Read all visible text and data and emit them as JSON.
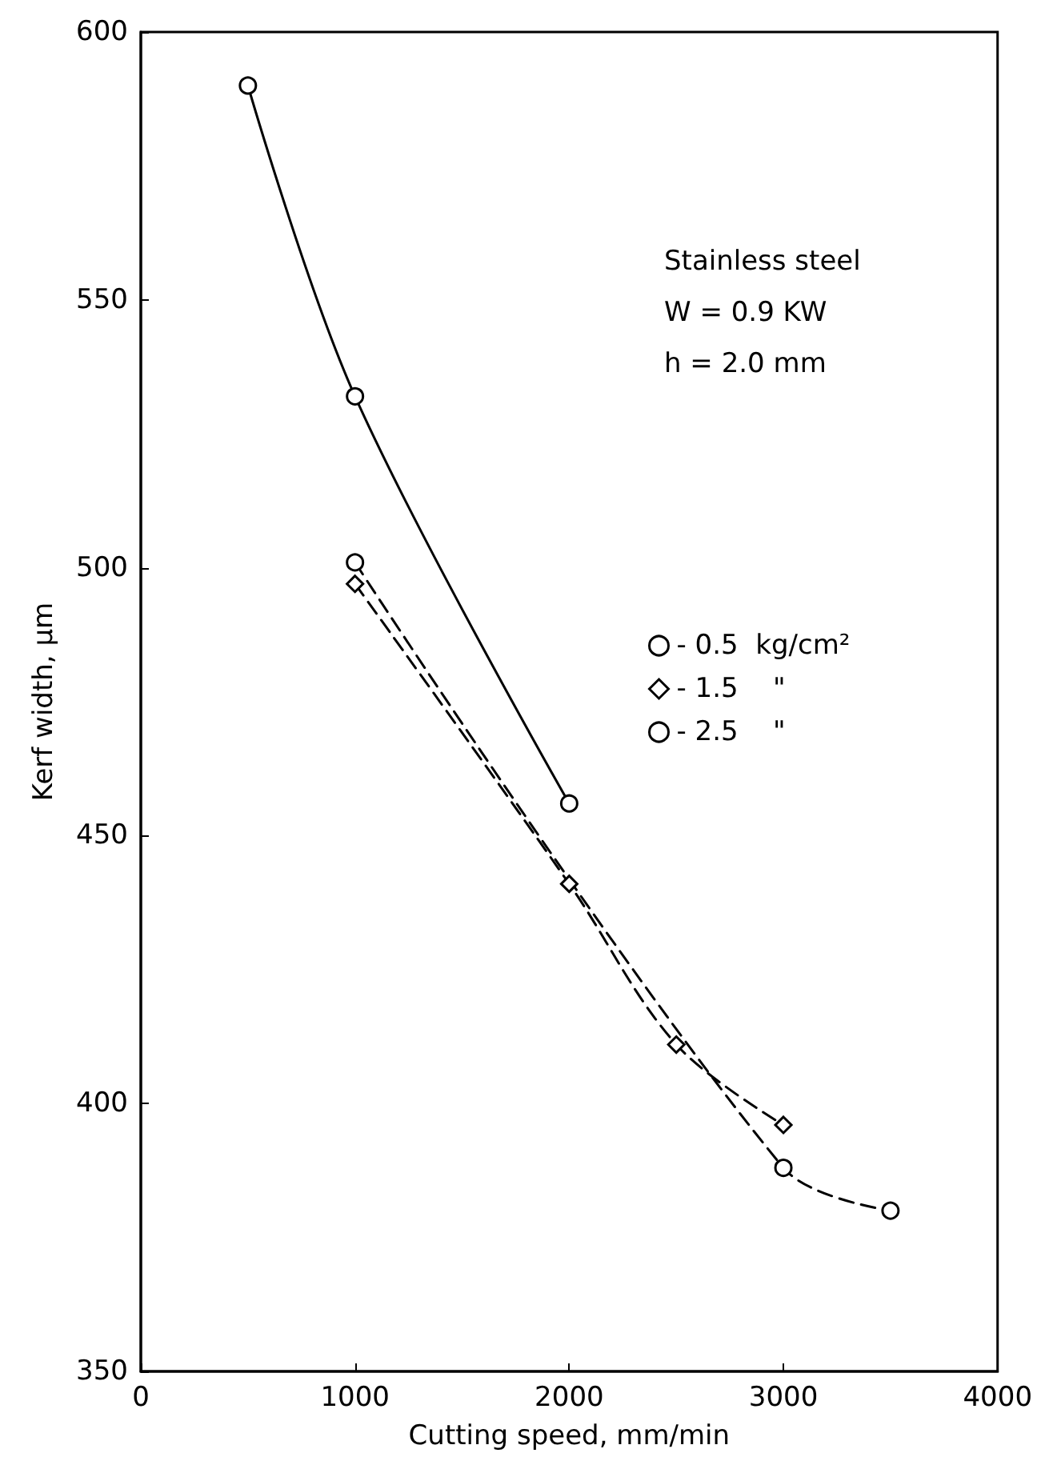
{
  "chart_data": {
    "type": "line",
    "xlabel": "Cutting speed, mm/min",
    "ylabel": "Kerf width, μm",
    "annotations": [
      "Stainless steel",
      "W = 0.9 KW",
      "h = 2.0 mm"
    ],
    "xlim": [
      0,
      4000
    ],
    "xticks": [
      0,
      1000,
      2000,
      3000,
      4000
    ],
    "ylim": [
      350,
      600
    ],
    "yticks": [
      350,
      400,
      450,
      500,
      550,
      600
    ],
    "grid": false,
    "legend": "right",
    "series": [
      {
        "name": "- 0.5  kg/cm²",
        "color": "#000000",
        "x": [
          500,
          1000,
          2000
        ],
        "values": [
          590,
          532,
          456
        ],
        "marker": "circle",
        "line_style": "solid"
      },
      {
        "name": "- 1.5    \"",
        "color": "#000000",
        "x": [
          1000,
          2000,
          2500,
          3000
        ],
        "values": [
          497,
          441,
          411,
          396
        ],
        "marker": "diamond",
        "line_style": "dashed"
      },
      {
        "name": "- 2.5    \"",
        "color": "#000000",
        "x": [
          1000,
          3000,
          3500
        ],
        "values": [
          501,
          388,
          380
        ],
        "marker": "circle",
        "line_style": "dashed"
      }
    ]
  }
}
